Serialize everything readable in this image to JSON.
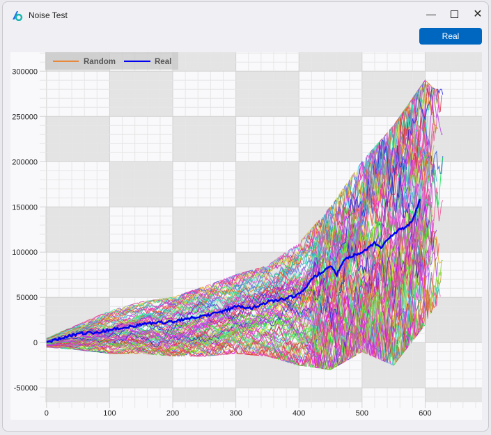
{
  "window": {
    "title": "Noise Test",
    "minimize_icon": "minimize-icon",
    "maximize_icon": "maximize-icon",
    "close_icon": "close-icon"
  },
  "toolbar": {
    "real_label": "Real",
    "button_color": "#0067c0"
  },
  "chart_data": {
    "type": "line",
    "xlim": [
      -2,
      690
    ],
    "ylim": [
      -66000,
      321000
    ],
    "x_ticks": [
      "0",
      "100",
      "200",
      "300",
      "400",
      "500",
      "600"
    ],
    "y_ticks": [
      "-50000",
      "0",
      "50000",
      "100000",
      "150000",
      "200000",
      "250000",
      "300000"
    ],
    "grid": true,
    "legend": {
      "placement": "top-left",
      "entries": [
        {
          "name": "Random",
          "color": "#e8883a"
        },
        {
          "name": "Real",
          "color": "#0000ee"
        }
      ]
    },
    "series": [
      {
        "name": "Real",
        "color": "#0000ee",
        "x": [
          0,
          25,
          50,
          75,
          100,
          125,
          150,
          175,
          200,
          225,
          250,
          275,
          300,
          325,
          350,
          375,
          400,
          410,
          420,
          440,
          450,
          460,
          470,
          480,
          500,
          520,
          530,
          550,
          560,
          570,
          580,
          590,
          592
        ],
        "y": [
          0,
          5000,
          10000,
          11000,
          14000,
          17000,
          20000,
          22000,
          23000,
          27000,
          30000,
          33000,
          40000,
          38000,
          45000,
          48000,
          53000,
          60000,
          70000,
          80000,
          85000,
          75000,
          90000,
          95000,
          100000,
          110000,
          105000,
          120000,
          125000,
          128000,
          135000,
          155000,
          160000
        ]
      },
      {
        "name": "Random",
        "color": "multi",
        "band_x": [
          0,
          50,
          100,
          150,
          200,
          250,
          300,
          350,
          400,
          450,
          500,
          550,
          600,
          615
        ],
        "band_high": [
          5000,
          20000,
          35000,
          45000,
          50000,
          62000,
          75000,
          85000,
          110000,
          150000,
          200000,
          240000,
          290000,
          280000
        ],
        "band_low": [
          -5000,
          -8000,
          -12000,
          -12000,
          -15000,
          -15000,
          -12000,
          -15000,
          -25000,
          -30000,
          -10000,
          -25000,
          20000,
          40000
        ]
      }
    ]
  }
}
